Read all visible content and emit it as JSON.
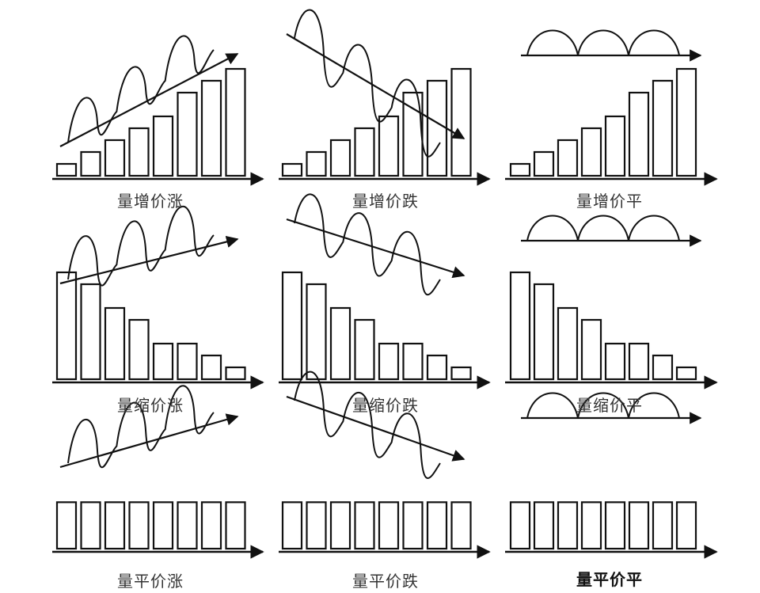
{
  "diagram": {
    "panels": [
      {
        "label": "量增价涨",
        "volume": [
          1,
          2,
          3,
          4,
          5,
          7,
          8,
          9
        ],
        "price_trend": "up"
      },
      {
        "label": "量增价跌",
        "volume": [
          1,
          2,
          3,
          4,
          5,
          7,
          8,
          9
        ],
        "price_trend": "down"
      },
      {
        "label": "量增价平",
        "volume": [
          1,
          2,
          3,
          4,
          5,
          7,
          8,
          9
        ],
        "price_trend": "flat"
      },
      {
        "label": "量缩价涨",
        "volume": [
          9,
          8,
          6,
          5,
          3,
          3,
          2,
          1
        ],
        "price_trend": "up"
      },
      {
        "label": "量缩价跌",
        "volume": [
          9,
          8,
          6,
          5,
          3,
          3,
          2,
          1
        ],
        "price_trend": "down"
      },
      {
        "label": "量缩价平",
        "volume": [
          9,
          8,
          6,
          5,
          3,
          3,
          2,
          1
        ],
        "price_trend": "flat"
      },
      {
        "label": "量平价涨",
        "volume": [
          6,
          6,
          6,
          6,
          6,
          6,
          6,
          6
        ],
        "price_trend": "up"
      },
      {
        "label": "量平价跌",
        "volume": [
          6,
          6,
          6,
          6,
          6,
          6,
          6,
          6
        ],
        "price_trend": "down"
      },
      {
        "label": "量平价平",
        "volume": [
          6,
          6,
          6,
          6,
          6,
          6,
          6,
          6
        ],
        "price_trend": "flat"
      }
    ],
    "line_color": "#111111",
    "label_color": "#333333"
  }
}
